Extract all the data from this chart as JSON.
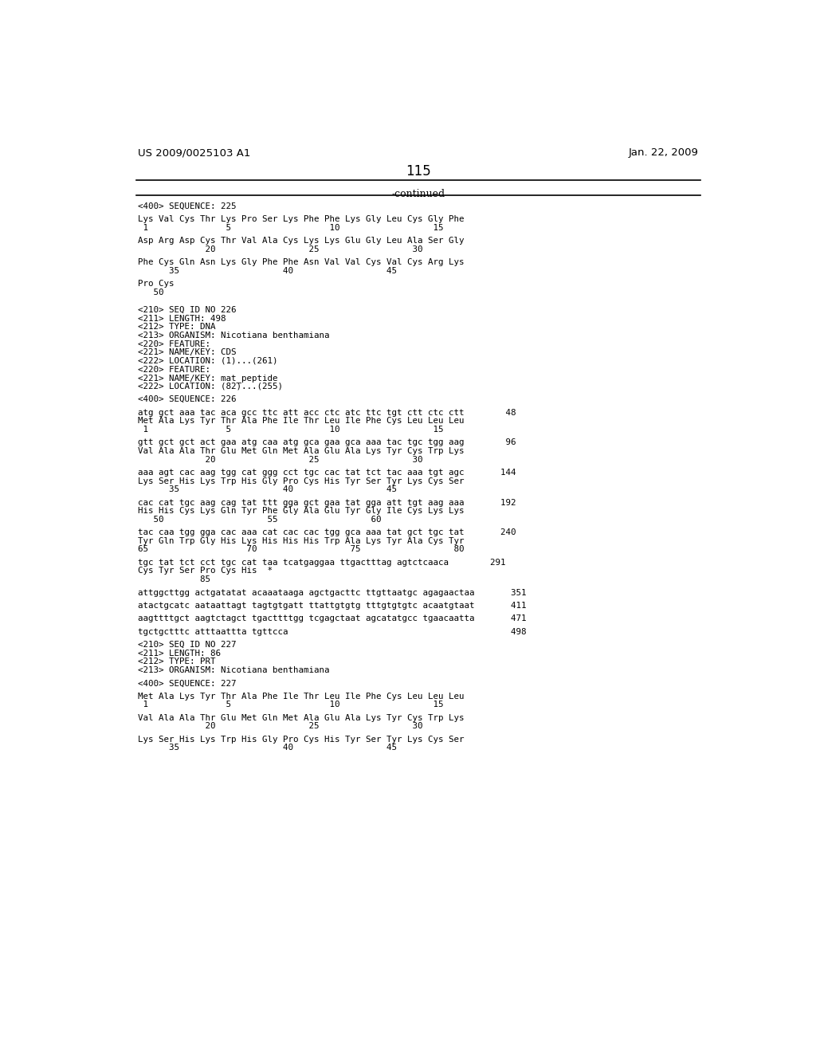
{
  "header_left": "US 2009/0025103 A1",
  "header_right": "Jan. 22, 2009",
  "page_number": "115",
  "continued_label": "-continued",
  "background_color": "#ffffff",
  "text_color": "#000000",
  "lines": [
    {
      "text": "<400> SEQUENCE: 225",
      "type": "normal"
    },
    {
      "text": "",
      "type": "blank"
    },
    {
      "text": "Lys Val Cys Thr Lys Pro Ser Lys Phe Phe Lys Gly Leu Cys Gly Phe",
      "type": "normal"
    },
    {
      "text": " 1               5                   10                  15",
      "type": "normal"
    },
    {
      "text": "",
      "type": "blank"
    },
    {
      "text": "Asp Arg Asp Cys Thr Val Ala Cys Lys Lys Glu Gly Leu Ala Ser Gly",
      "type": "normal"
    },
    {
      "text": "             20                  25                  30",
      "type": "normal"
    },
    {
      "text": "",
      "type": "blank"
    },
    {
      "text": "Phe Cys Gln Asn Lys Gly Phe Phe Asn Val Val Cys Val Cys Arg Lys",
      "type": "normal"
    },
    {
      "text": "      35                    40                  45",
      "type": "normal"
    },
    {
      "text": "",
      "type": "blank"
    },
    {
      "text": "Pro Cys",
      "type": "normal"
    },
    {
      "text": "   50",
      "type": "normal"
    },
    {
      "text": "",
      "type": "blank"
    },
    {
      "text": "",
      "type": "blank"
    },
    {
      "text": "<210> SEQ ID NO 226",
      "type": "normal"
    },
    {
      "text": "<211> LENGTH: 498",
      "type": "normal"
    },
    {
      "text": "<212> TYPE: DNA",
      "type": "normal"
    },
    {
      "text": "<213> ORGANISM: Nicotiana benthamiana",
      "type": "normal"
    },
    {
      "text": "<220> FEATURE:",
      "type": "normal"
    },
    {
      "text": "<221> NAME/KEY: CDS",
      "type": "normal"
    },
    {
      "text": "<222> LOCATION: (1)...(261)",
      "type": "normal"
    },
    {
      "text": "<220> FEATURE:",
      "type": "normal"
    },
    {
      "text": "<221> NAME/KEY: mat_peptide",
      "type": "normal"
    },
    {
      "text": "<222> LOCATION: (82)...(255)",
      "type": "normal"
    },
    {
      "text": "",
      "type": "blank"
    },
    {
      "text": "<400> SEQUENCE: 226",
      "type": "normal"
    },
    {
      "text": "",
      "type": "blank"
    },
    {
      "text": "atg gct aaa tac aca gcc ttc att acc ctc atc ttc tgt ctt ctc ctt        48",
      "type": "normal"
    },
    {
      "text": "Met Ala Lys Tyr Thr Ala Phe Ile Thr Leu Ile Phe Cys Leu Leu Leu",
      "type": "normal"
    },
    {
      "text": " 1               5                   10                  15",
      "type": "normal"
    },
    {
      "text": "",
      "type": "blank"
    },
    {
      "text": "gtt gct gct act gaa atg caa atg gca gaa gca aaa tac tgc tgg aag        96",
      "type": "normal"
    },
    {
      "text": "Val Ala Ala Thr Glu Met Gln Met Ala Glu Ala Lys Tyr Cys Trp Lys",
      "type": "normal"
    },
    {
      "text": "             20                  25                  30",
      "type": "normal"
    },
    {
      "text": "",
      "type": "blank"
    },
    {
      "text": "aaa agt cac aag tgg cat ggg cct tgc cac tat tct tac aaa tgt agc       144",
      "type": "normal"
    },
    {
      "text": "Lys Ser His Lys Trp His Gly Pro Cys His Tyr Ser Tyr Lys Cys Ser",
      "type": "normal"
    },
    {
      "text": "      35                    40                  45",
      "type": "normal"
    },
    {
      "text": "",
      "type": "blank"
    },
    {
      "text": "cac cat tgc aag cag tat ttt gga gct gaa tat gga att tgt aag aaa       192",
      "type": "normal"
    },
    {
      "text": "His His Cys Lys Gln Tyr Phe Gly Ala Glu Tyr Gly Ile Cys Lys Lys",
      "type": "normal"
    },
    {
      "text": "   50                    55                  60",
      "type": "normal"
    },
    {
      "text": "",
      "type": "blank"
    },
    {
      "text": "tac caa tgg gga cac aaa cat cac cac tgg gca aaa tat gct tgc tat       240",
      "type": "normal"
    },
    {
      "text": "Tyr Gln Trp Gly His Lys His His His Trp Ala Lys Tyr Ala Cys Tyr",
      "type": "normal"
    },
    {
      "text": "65                   70                  75                  80",
      "type": "normal"
    },
    {
      "text": "",
      "type": "blank"
    },
    {
      "text": "tgc tat tct cct tgc cat taa tcatgaggaa ttgactttag agtctcaaca        291",
      "type": "normal"
    },
    {
      "text": "Cys Tyr Ser Pro Cys His  *",
      "type": "normal"
    },
    {
      "text": "            85",
      "type": "normal"
    },
    {
      "text": "",
      "type": "blank"
    },
    {
      "text": "attggcttgg actgatatat acaaataaga agctgacttc ttgttaatgc agagaactaa       351",
      "type": "normal"
    },
    {
      "text": "",
      "type": "blank"
    },
    {
      "text": "atactgcatc aataattagt tagtgtgatt ttattgtgtg tttgtgtgtc acaatgtaat       411",
      "type": "normal"
    },
    {
      "text": "",
      "type": "blank"
    },
    {
      "text": "aagttttgct aagtctagct tgacttttgg tcgagctaat agcatatgcc tgaacaatta       471",
      "type": "normal"
    },
    {
      "text": "",
      "type": "blank"
    },
    {
      "text": "tgctgctttc atttaattta tgttcca                                           498",
      "type": "normal"
    },
    {
      "text": "",
      "type": "blank"
    },
    {
      "text": "<210> SEQ ID NO 227",
      "type": "normal"
    },
    {
      "text": "<211> LENGTH: 86",
      "type": "normal"
    },
    {
      "text": "<212> TYPE: PRT",
      "type": "normal"
    },
    {
      "text": "<213> ORGANISM: Nicotiana benthamiana",
      "type": "normal"
    },
    {
      "text": "",
      "type": "blank"
    },
    {
      "text": "<400> SEQUENCE: 227",
      "type": "normal"
    },
    {
      "text": "",
      "type": "blank"
    },
    {
      "text": "Met Ala Lys Tyr Thr Ala Phe Ile Thr Leu Ile Phe Cys Leu Leu Leu",
      "type": "normal"
    },
    {
      "text": " 1               5                   10                  15",
      "type": "normal"
    },
    {
      "text": "",
      "type": "blank"
    },
    {
      "text": "Val Ala Ala Thr Glu Met Gln Met Ala Glu Ala Lys Tyr Cys Trp Lys",
      "type": "normal"
    },
    {
      "text": "             20                  25                  30",
      "type": "normal"
    },
    {
      "text": "",
      "type": "blank"
    },
    {
      "text": "Lys Ser His Lys Trp His Gly Pro Cys His Tyr Ser Tyr Lys Cys Ser",
      "type": "normal"
    },
    {
      "text": "      35                    40                  45",
      "type": "normal"
    }
  ]
}
